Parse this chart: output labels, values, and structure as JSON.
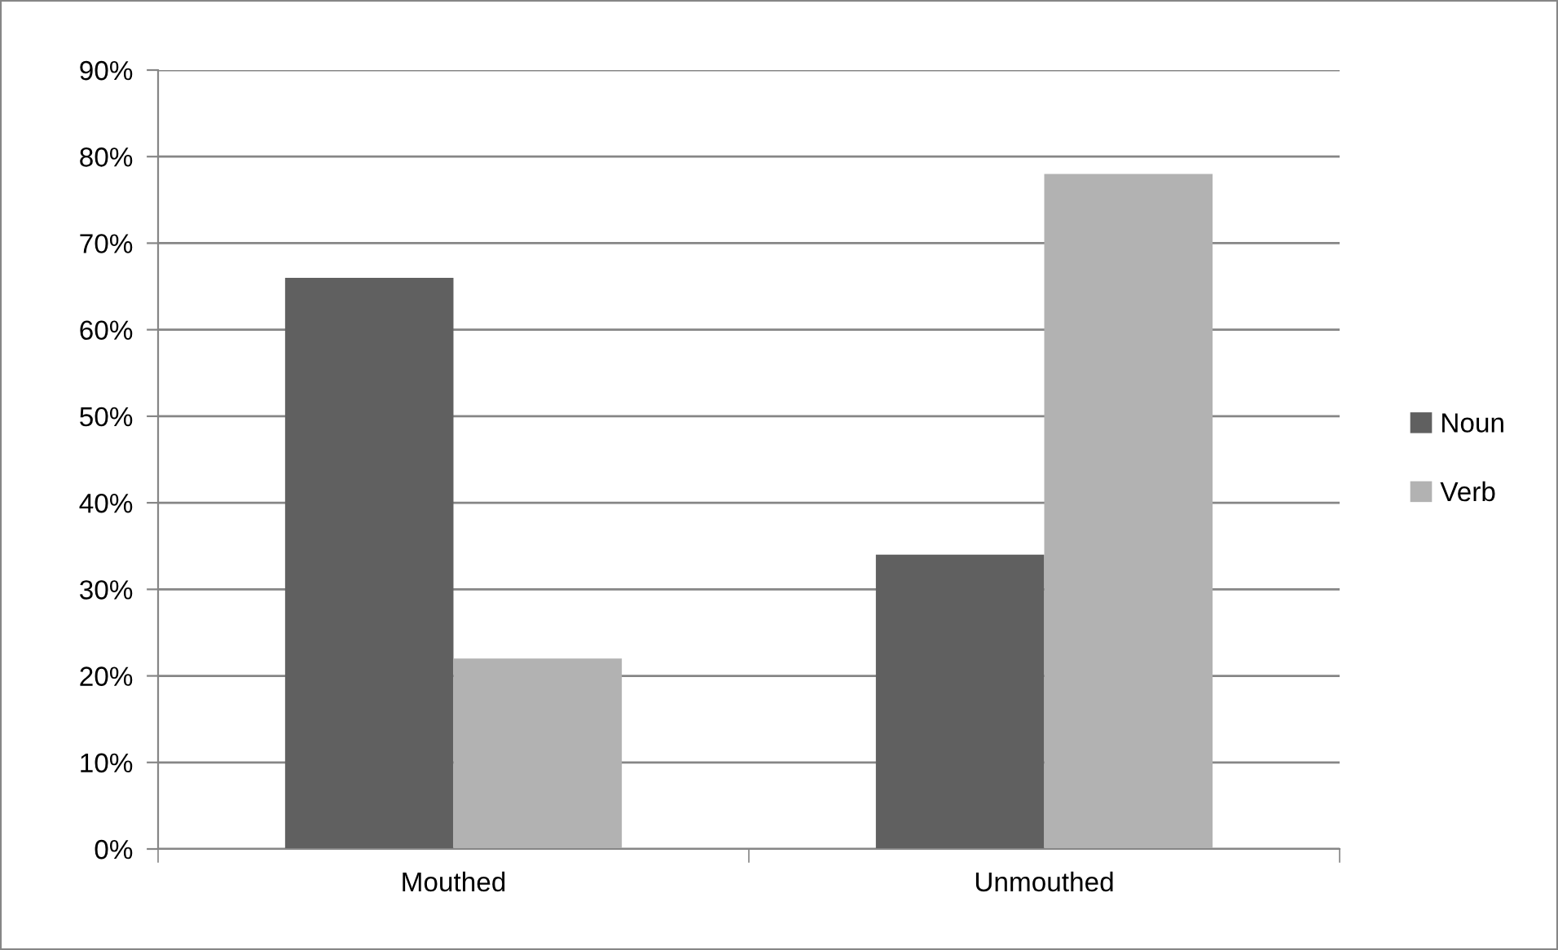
{
  "chart_data": {
    "type": "bar",
    "categories": [
      "Mouthed",
      "Unmouthed"
    ],
    "series": [
      {
        "name": "Noun",
        "color": "#606060",
        "values": [
          66,
          34
        ]
      },
      {
        "name": "Verb",
        "color": "#b2b2b2",
        "values": [
          22,
          78
        ]
      }
    ],
    "ylim": [
      0,
      90
    ],
    "yticks": [
      {
        "value": 0,
        "label": "0%"
      },
      {
        "value": 10,
        "label": "10%"
      },
      {
        "value": 20,
        "label": "20%"
      },
      {
        "value": 30,
        "label": "30%"
      },
      {
        "value": 40,
        "label": "40%"
      },
      {
        "value": 50,
        "label": "50%"
      },
      {
        "value": 60,
        "label": "60%"
      },
      {
        "value": 70,
        "label": "70%"
      },
      {
        "value": 80,
        "label": "80%"
      },
      {
        "value": 90,
        "label": "90%"
      }
    ],
    "grid": "y",
    "legend": "right"
  }
}
